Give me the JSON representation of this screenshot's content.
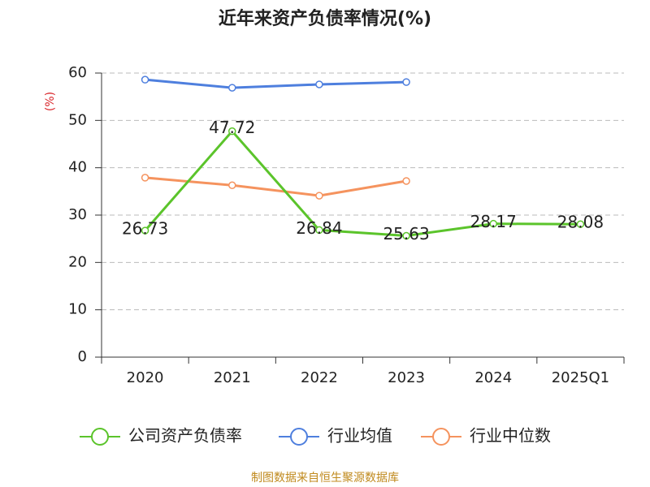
{
  "chart_data": {
    "type": "line",
    "title": "近年来资产负债率情况(%)",
    "y_label": "(%)",
    "categories": [
      "2020",
      "2021",
      "2022",
      "2023",
      "2024",
      "2025Q1"
    ],
    "series": [
      {
        "name": "公司资产负债率",
        "color": "#5bc42b",
        "values": [
          26.73,
          47.72,
          26.84,
          25.63,
          28.17,
          28.08
        ],
        "data_labels": true
      },
      {
        "name": "行业均值",
        "color": "#4e7fde",
        "values": [
          58.6,
          56.9,
          57.6,
          58.1,
          null,
          null
        ]
      },
      {
        "name": "行业中位数",
        "color": "#f5935e",
        "values": [
          37.9,
          36.3,
          34.1,
          37.2,
          null,
          null
        ]
      }
    ],
    "ylim": [
      0,
      60
    ],
    "yticks": [
      0,
      10,
      20,
      30,
      40,
      50,
      60
    ],
    "grid": true,
    "source": "制图数据来自恒生聚源数据库"
  }
}
